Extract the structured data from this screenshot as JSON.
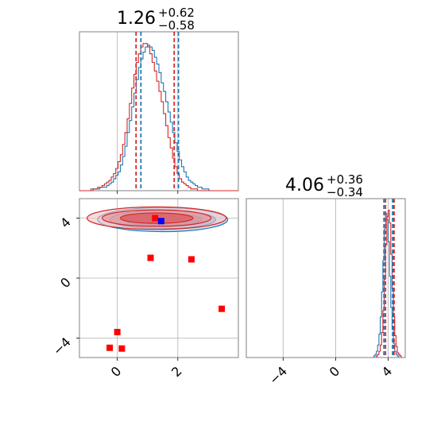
{
  "chart_data": {
    "type": "corner",
    "colors": {
      "blue": "#1f77b4",
      "red": "#d62728",
      "grid": "#b0b0b0",
      "frame": "#808080",
      "marker_red": "#ff0000",
      "marker_blue": "#0000ff"
    },
    "panels": [
      {
        "id": "hist-param1",
        "type": "histogram",
        "title": {
          "value": "1.26",
          "plus": "+0.62",
          "minus": "−0.58"
        },
        "xlim": [
          -1.25,
          4.0
        ],
        "bins_from": -1.25,
        "bin_width": 0.075,
        "series": [
          {
            "name": "",
            "color": "#1f77b4",
            "values": [
              0,
              0,
              0,
              0,
              0,
              1,
              1,
              1,
              1,
              2,
              2,
              2,
              3,
              4,
              5,
              7,
              9,
              11,
              15,
              20,
              26,
              34,
              41,
              49,
              57,
              65,
              72,
              77,
              81,
              84,
              85,
              84,
              82,
              78,
              74,
              69,
              63,
              58,
              52,
              46,
              40,
              34,
              28,
              23,
              18,
              14,
              11,
              8,
              6,
              5,
              4,
              3,
              2,
              2,
              1,
              1,
              1,
              0,
              0,
              0,
              0,
              0,
              0,
              0,
              0,
              0,
              0,
              0,
              0,
              0
            ]
          },
          {
            "name": "",
            "color": "#d62728",
            "values": [
              0,
              0,
              0,
              0,
              0,
              0,
              1,
              1,
              2,
              2,
              3,
              4,
              5,
              6,
              8,
              10,
              13,
              17,
              21,
              27,
              34,
              42,
              51,
              60,
              68,
              75,
              80,
              84,
              86,
              86,
              84,
              80,
              75,
              70,
              64,
              58,
              52,
              45,
              38,
              31,
              25,
              19,
              14,
              10,
              7,
              5,
              4,
              3,
              2,
              1,
              1,
              1,
              0,
              0,
              0,
              0,
              0,
              0,
              0,
              0,
              0,
              0,
              0,
              0,
              0,
              0,
              0,
              0,
              0,
              0
            ]
          }
        ],
        "quantile_lines": [
          {
            "color": "#d62728",
            "values": [
              0.62,
              1.88
            ]
          },
          {
            "color": "#1f77b4",
            "values": [
              0.78,
              2.02
            ]
          }
        ]
      },
      {
        "id": "scatter-param1-param2",
        "type": "scatter",
        "xlim": [
          -1.25,
          4.0
        ],
        "ylim": [
          -5.3,
          5.3
        ],
        "xticks": [
          "0",
          "2"
        ],
        "yticks": [
          "−4",
          "0",
          "4"
        ],
        "contours": [
          {
            "color": "#1f77b4",
            "cx": 1.5,
            "cy": 3.9,
            "rx": [
              2.15,
              1.75,
              1.3
            ],
            "ry": [
              0.8,
              0.6,
              0.4
            ]
          },
          {
            "color": "#d62728",
            "cx": 1.3,
            "cy": 4.0,
            "rx": [
              2.3,
              1.8,
              1.2
            ],
            "ry": [
              0.75,
              0.55,
              0.35
            ]
          }
        ],
        "points_red": [
          [
            1.25,
            4.0
          ],
          [
            1.1,
            1.35
          ],
          [
            2.45,
            1.25
          ],
          [
            3.45,
            -2.05
          ],
          [
            0.0,
            -3.6
          ],
          [
            -0.25,
            -4.65
          ],
          [
            0.15,
            -4.7
          ]
        ],
        "points_blue": [
          [
            1.45,
            3.8
          ]
        ]
      },
      {
        "id": "hist-param2",
        "type": "histogram",
        "title": {
          "value": "4.06",
          "plus": "+0.36",
          "minus": "−0.34"
        },
        "xlim": [
          -6.8,
          5.3
        ],
        "xticks": [
          "−4",
          "0",
          "4"
        ],
        "bins_from": 2.9,
        "bin_width": 0.1,
        "series": [
          {
            "name": "",
            "color": "#1f77b4",
            "values": [
              1,
              2,
              4,
              8,
              15,
              26,
              42,
              62,
              82,
              92,
              88,
              74,
              52,
              32,
              18,
              9,
              4,
              2,
              1,
              0,
              0,
              0,
              0,
              0
            ]
          },
          {
            "name": "",
            "color": "#d62728",
            "values": [
              0,
              0,
              1,
              2,
              4,
              8,
              16,
              30,
              50,
              72,
              90,
              94,
              86,
              66,
              44,
              26,
              14,
              7,
              3,
              2,
              1,
              0,
              0,
              0
            ]
          }
        ],
        "quantile_lines": [
          {
            "color": "#1f77b4",
            "values": [
              3.68,
              4.34
            ]
          },
          {
            "color": "#d62728",
            "values": [
              3.8,
              4.45
            ]
          }
        ]
      }
    ]
  }
}
